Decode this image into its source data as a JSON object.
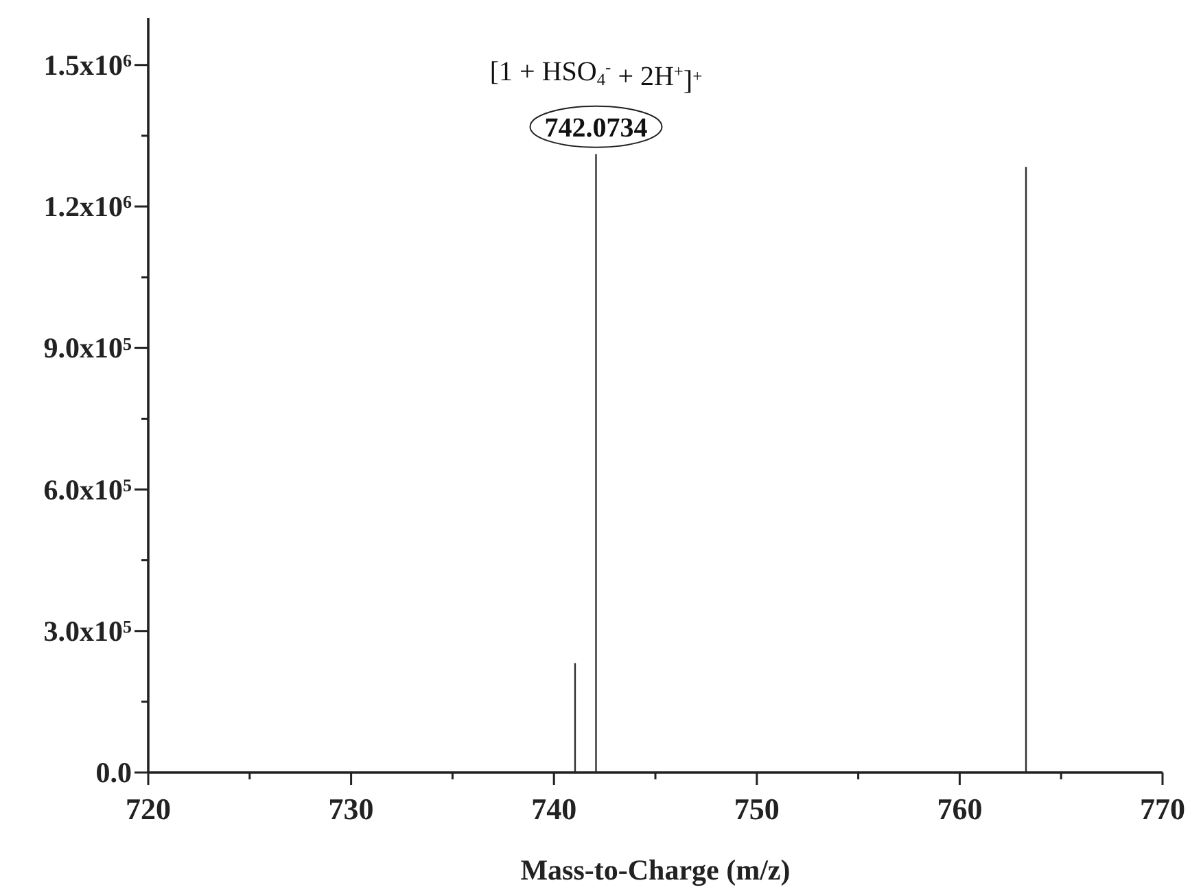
{
  "chart_data": {
    "type": "bar",
    "xlabel": "Mass-to-Charge (m/z)",
    "x": [
      741.04,
      742.0734,
      763.27
    ],
    "values": [
      232000,
      1311000,
      1284000
    ],
    "color": "#303030",
    "xlim": [
      720,
      770
    ],
    "xticks": [
      720,
      {
        "value": 725,
        "label": null
      },
      730,
      {
        "value": 735,
        "label": null
      },
      740,
      {
        "value": 745,
        "label": null
      },
      750,
      {
        "value": 755,
        "label": null
      },
      760,
      {
        "value": 765,
        "label": null
      },
      770
    ],
    "ylim": [
      0,
      1600000
    ],
    "yticks": [
      {
        "value": 0,
        "label": "0.0"
      },
      {
        "value": 150000,
        "label": null
      },
      {
        "value": 300000,
        "label": "3.0x10$^{5}$"
      },
      {
        "value": 450000,
        "label": null
      },
      {
        "value": 600000,
        "label": "6.0x10$^{5}$"
      },
      {
        "value": 750000,
        "label": null
      },
      {
        "value": 900000,
        "label": "9.0x10$^{5}$"
      },
      {
        "value": 1050000,
        "label": null
      },
      {
        "value": 1200000,
        "label": "1.2x10$^{6}$"
      },
      {
        "value": 1350000,
        "label": null
      },
      {
        "value": 1500000,
        "label": "1.5x10$^{6}$"
      }
    ],
    "annotations": [
      {
        "text": "[1 + HSO$_{4}$$^{-}$ + 2H$^{+}$]$^{+}$",
        "x": 742.0734,
        "y": 1311000
      },
      {
        "text": "742.0734",
        "x": 742.0734,
        "y": 1311000
      }
    ]
  }
}
